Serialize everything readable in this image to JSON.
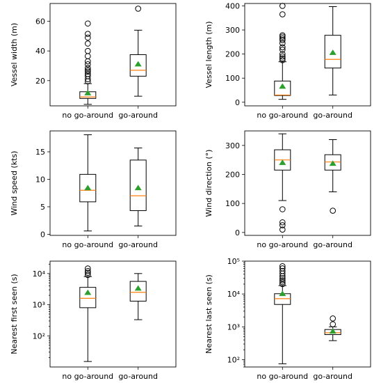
{
  "chart_data": [
    {
      "type": "box",
      "ylabel": "Vessel width (m)",
      "scale": "linear",
      "ylim": [
        3,
        72
      ],
      "yticks": [
        20,
        40,
        60
      ],
      "categories": [
        "no go-around",
        "go-around"
      ],
      "boxes": [
        {
          "name": "no go-around",
          "whislo": 4,
          "q1": 8,
          "med": 9,
          "q3": 12.5,
          "whishi": 18,
          "mean": 11.5,
          "fliers": [
            19.5,
            21,
            23,
            24.5,
            26,
            27,
            28.5,
            31,
            33,
            36.5,
            40,
            45,
            49,
            51.5,
            58.5
          ]
        },
        {
          "name": "go-around",
          "whislo": 9.5,
          "q1": 23,
          "med": 27,
          "q3": 37.5,
          "whishi": 54,
          "mean": 31,
          "fliers": [
            68.5
          ]
        }
      ]
    },
    {
      "type": "box",
      "ylabel": "Vessel length (m)",
      "scale": "linear",
      "ylim": [
        -15,
        410
      ],
      "yticks": [
        0,
        100,
        200,
        300,
        400
      ],
      "categories": [
        "no go-around",
        "go-around"
      ],
      "boxes": [
        {
          "name": "no go-around",
          "whislo": 12,
          "q1": 28,
          "med": 30,
          "q3": 88,
          "whishi": 168,
          "mean": 65,
          "fliers": [
            175,
            182,
            190,
            200,
            218,
            228,
            245,
            258,
            265,
            272,
            278,
            365,
            400
          ]
        },
        {
          "name": "go-around",
          "whislo": 30,
          "q1": 142,
          "med": 178,
          "q3": 278,
          "whishi": 397,
          "mean": 205,
          "fliers": []
        }
      ]
    },
    {
      "type": "box",
      "ylabel": "Wind speed (kts)",
      "scale": "linear",
      "ylim": [
        -0.2,
        18.8
      ],
      "yticks": [
        0,
        5,
        10,
        15
      ],
      "categories": [
        "no go-around",
        "go-around"
      ],
      "boxes": [
        {
          "name": "no go-around",
          "whislo": 0.6,
          "q1": 5.9,
          "med": 8.0,
          "q3": 10.9,
          "whishi": 18.1,
          "mean": 8.4,
          "fliers": []
        },
        {
          "name": "go-around",
          "whislo": 1.5,
          "q1": 4.3,
          "med": 7.0,
          "q3": 13.5,
          "whishi": 15.7,
          "mean": 8.4,
          "fliers": []
        }
      ]
    },
    {
      "type": "box",
      "ylabel": "Wind direction (°)",
      "scale": "linear",
      "ylim": [
        -10,
        350
      ],
      "yticks": [
        0,
        100,
        200,
        300
      ],
      "categories": [
        "no go-around",
        "go-around"
      ],
      "boxes": [
        {
          "name": "no go-around",
          "whislo": 110,
          "q1": 215,
          "med": 250,
          "q3": 285,
          "whishi": 340,
          "mean": 240,
          "fliers": [
            80,
            35,
            25,
            10
          ]
        },
        {
          "name": "go-around",
          "whislo": 140,
          "q1": 215,
          "med": 243,
          "q3": 268,
          "whishi": 320,
          "mean": 237,
          "fliers": [
            75
          ]
        }
      ]
    },
    {
      "type": "box",
      "ylabel": "Nearest first seen (s)",
      "scale": "log",
      "ylim": [
        10,
        25000
      ],
      "yticks": [
        100,
        1000,
        10000
      ],
      "ytick_labels": [
        "10²",
        "10³",
        "10⁴"
      ],
      "categories": [
        "no go-around",
        "go-around"
      ],
      "boxes": [
        {
          "name": "no go-around",
          "whislo": 15,
          "q1": 800,
          "med": 1600,
          "q3": 3600,
          "whishi": 8000,
          "mean": 2400,
          "fliers": [
            9000,
            10500,
            12000,
            14500
          ]
        },
        {
          "name": "go-around",
          "whislo": 330,
          "q1": 1300,
          "med": 2500,
          "q3": 5600,
          "whishi": 10000,
          "mean": 3300,
          "fliers": []
        }
      ]
    },
    {
      "type": "box",
      "ylabel": "Nearest last seen (s)",
      "scale": "log",
      "ylim": [
        60,
        100000
      ],
      "yticks": [
        100,
        1000,
        10000,
        100000
      ],
      "ytick_labels": [
        "10²",
        "10³",
        "10⁴",
        "10⁵"
      ],
      "categories": [
        "no go-around",
        "go-around"
      ],
      "boxes": [
        {
          "name": "no go-around",
          "whislo": 75,
          "q1": 4800,
          "med": 7200,
          "q3": 10200,
          "whishi": 18000,
          "mean": 10000,
          "fliers": [
            20000,
            23000,
            26000,
            30000,
            35000,
            42000,
            50000,
            60000,
            70000
          ]
        },
        {
          "name": "go-around",
          "whislo": 380,
          "q1": 580,
          "med": 660,
          "q3": 830,
          "whishi": 1000,
          "mean": 720,
          "fliers": [
            1200,
            1800
          ]
        }
      ]
    }
  ]
}
